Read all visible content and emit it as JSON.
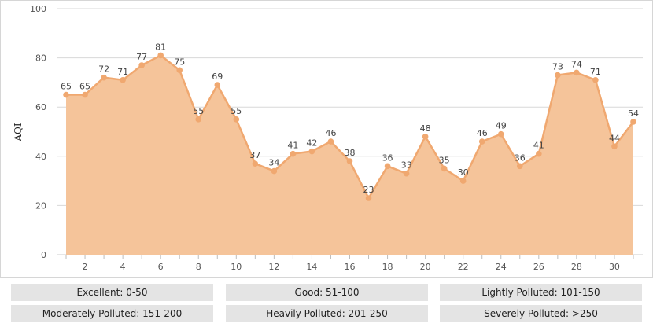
{
  "chart_data": {
    "type": "area",
    "ylabel": "AQI",
    "xlabel": "",
    "ylim": [
      0,
      100
    ],
    "yticks": [
      0,
      20,
      40,
      60,
      80,
      100
    ],
    "xticks": [
      2,
      4,
      6,
      8,
      10,
      12,
      14,
      16,
      18,
      20,
      22,
      24,
      26,
      28,
      30
    ],
    "grid": true,
    "x": [
      1,
      2,
      3,
      4,
      5,
      6,
      7,
      8,
      9,
      10,
      11,
      12,
      13,
      14,
      15,
      16,
      17,
      18,
      19,
      20,
      21,
      22,
      23,
      24,
      25,
      26,
      27,
      28,
      29,
      30,
      31
    ],
    "values": [
      65,
      65,
      72,
      71,
      77,
      81,
      75,
      55,
      69,
      55,
      37,
      34,
      41,
      42,
      46,
      38,
      23,
      36,
      33,
      48,
      35,
      30,
      46,
      49,
      36,
      41,
      73,
      74,
      71,
      44,
      54
    ],
    "colors": {
      "fill": "#f5c49a",
      "line": "#f0a870",
      "marker": "#f0a870"
    }
  },
  "legend": {
    "row1": [
      "Excellent: 0-50",
      "Good: 51-100",
      "Lightly Polluted: 101-150"
    ],
    "row2": [
      "Moderately Polluted: 151-200",
      "Heavily Polluted: 201-250",
      "Severely Polluted: >250"
    ]
  }
}
